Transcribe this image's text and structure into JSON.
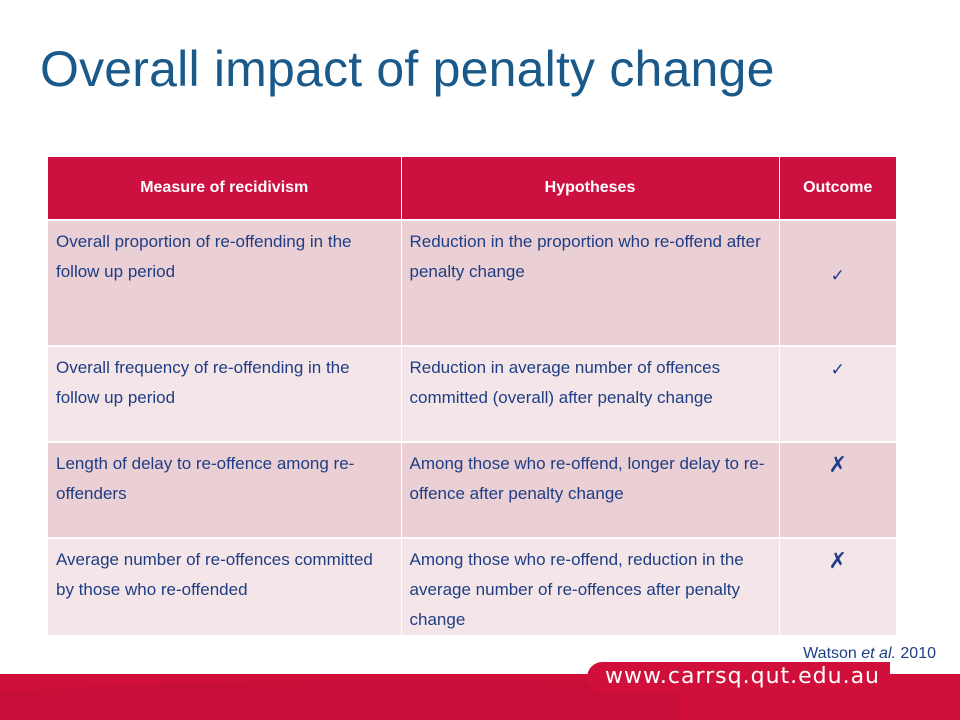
{
  "slide": {
    "title": "Overall impact of penalty change"
  },
  "table": {
    "headers": [
      "Measure of recidivism",
      "Hypotheses",
      "Outcome"
    ],
    "rows": [
      {
        "measure": "Overall proportion of re-offending in the follow up period",
        "hypothesis": "Reduction in the proportion who re-offend after penalty change",
        "outcome": "✓",
        "outcome_icon": "check-icon"
      },
      {
        "measure": "Overall frequency of re-offending in the follow up period",
        "hypothesis": "Reduction in average number of offences committed (overall) after penalty change",
        "outcome": "✓",
        "outcome_icon": "check-icon"
      },
      {
        "measure": "Length of delay to re-offence among re-offenders",
        "hypothesis": "Among those who re-offend, longer delay to re-offence after penalty change",
        "outcome": "✗",
        "outcome_icon": "cross-icon"
      },
      {
        "measure": "Average number of re-offences committed by those who re-offended",
        "hypothesis": "Among those who re-offend, reduction in the average number of re-offences after penalty change",
        "outcome": "✗",
        "outcome_icon": "cross-icon"
      }
    ]
  },
  "citation": {
    "author": "Watson",
    "etal": "et al.",
    "year": "2010"
  },
  "footer": {
    "url": "www.carrsq.qut.edu.au"
  },
  "colors": {
    "title": "#1a5a8a",
    "header_bg": "#cc1140",
    "row_dark": "#ead0d4",
    "row_light": "#f4e6e8",
    "body_text": "#1f3d85",
    "footer_bar": "#d0103a"
  }
}
